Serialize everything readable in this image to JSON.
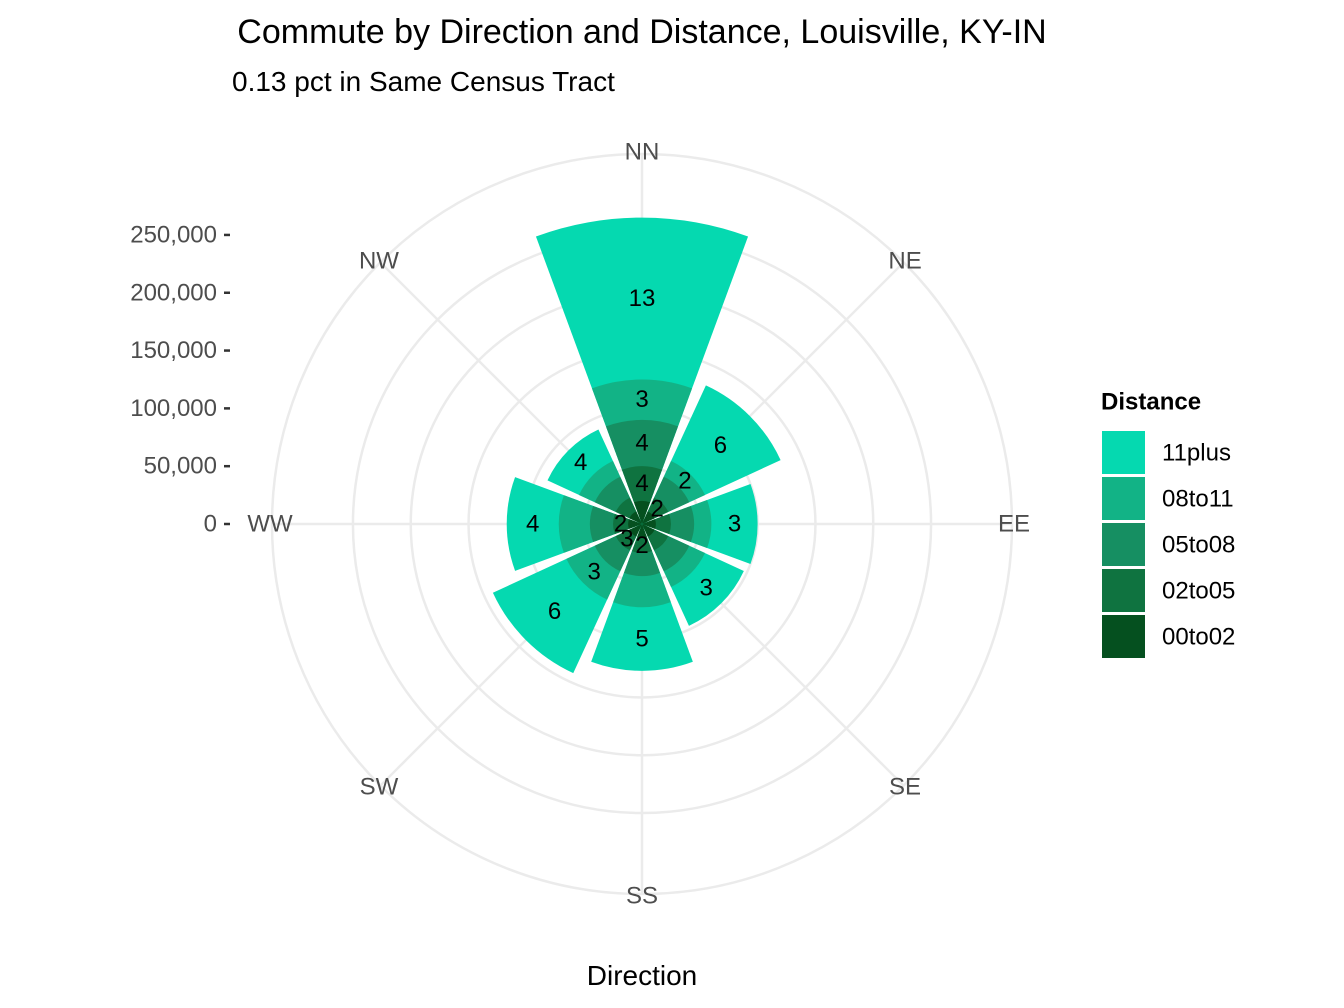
{
  "chart_data": {
    "type": "bar",
    "coord": "polar",
    "title": "Commute by Direction and Distance, Louisville, KY-IN",
    "subtitle": "0.13 pct in Same Census Tract",
    "xlabel": "Direction",
    "ylabel": "",
    "directions": [
      "NN",
      "NE",
      "EE",
      "SE",
      "SS",
      "SW",
      "WW",
      "NW"
    ],
    "radial_ticks": [
      0,
      50000,
      100000,
      150000,
      200000,
      250000
    ],
    "radial_tick_labels": [
      "0",
      "50,000",
      "100,000",
      "150,000",
      "200,000",
      "250,000"
    ],
    "ylim": [
      0,
      320000
    ],
    "grid": true,
    "legend": {
      "title": "Distance",
      "position": "right",
      "entries": [
        "11plus",
        "08to11",
        "05to08",
        "02to05",
        "00to02"
      ]
    },
    "colors": {
      "11plus": "#05d9b0",
      "08to11": "#12b386",
      "05to08": "#168f62",
      "02to05": "#0f7340",
      "00to02": "#05501f"
    },
    "stack_order": [
      "00to02",
      "02to05",
      "05to08",
      "08to11",
      "11plus"
    ],
    "cumulative": {
      "NN": [
        20000,
        50000,
        90000,
        125000,
        265000
      ],
      "NE": [
        12000,
        25000,
        45000,
        60000,
        132000
      ],
      "EE": [
        12000,
        25000,
        45000,
        60000,
        100000
      ],
      "SE": [
        12000,
        25000,
        45000,
        60000,
        97000
      ],
      "SS": [
        12000,
        25000,
        45000,
        72000,
        127000
      ],
      "SW": [
        12000,
        25000,
        45000,
        72000,
        142000
      ],
      "WW": [
        12000,
        25000,
        45000,
        72000,
        117000
      ],
      "NW": [
        12000,
        25000,
        45000,
        60000,
        90000
      ]
    },
    "segment_labels": [
      {
        "dir": "NN",
        "group": "11plus",
        "text": "13"
      },
      {
        "dir": "NN",
        "group": "08to11",
        "text": "3"
      },
      {
        "dir": "NN",
        "group": "05to08",
        "text": "4"
      },
      {
        "dir": "NN",
        "group": "02to05",
        "text": "4"
      },
      {
        "dir": "NE",
        "group": "11plus",
        "text": "6"
      },
      {
        "dir": "NE",
        "group": "08to11",
        "text": "2"
      },
      {
        "dir": "NE",
        "group": "02to05",
        "text": "2"
      },
      {
        "dir": "EE",
        "group": "11plus",
        "text": "3"
      },
      {
        "dir": "SE",
        "group": "11plus",
        "text": "3"
      },
      {
        "dir": "SS",
        "group": "11plus",
        "text": "5"
      },
      {
        "dir": "SS",
        "group": "02to05",
        "text": "2"
      },
      {
        "dir": "SW",
        "group": "11plus",
        "text": "6"
      },
      {
        "dir": "SW",
        "group": "08to11",
        "text": "3"
      },
      {
        "dir": "SW",
        "group": "02to05",
        "text": "3"
      },
      {
        "dir": "WW",
        "group": "11plus",
        "text": "4"
      },
      {
        "dir": "WW",
        "group": "02to05",
        "text": "2"
      },
      {
        "dir": "NW",
        "group": "11plus",
        "text": "4"
      }
    ]
  }
}
